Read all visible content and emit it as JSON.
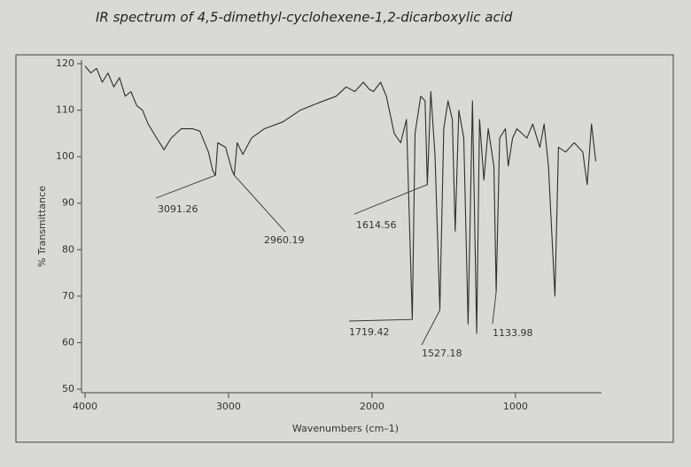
{
  "chart_data": {
    "type": "line",
    "title": "IR spectrum of 4,5-dimethyl-cyclohexene-1,2-dicarboxylic acid",
    "x_label": "Wavenumbers (cm–1)",
    "y_label": "% Transmittance",
    "xlim": [
      4000,
      400
    ],
    "ylim": [
      50,
      120
    ],
    "xticks": [
      4000,
      3000,
      2000,
      1000
    ],
    "yticks": [
      50,
      60,
      70,
      80,
      90,
      100,
      110,
      120
    ],
    "color": "#2e2e2e",
    "x": [
      4000,
      3960,
      3920,
      3880,
      3840,
      3800,
      3760,
      3720,
      3680,
      3640,
      3600,
      3560,
      3520,
      3480,
      3450,
      3400,
      3330,
      3250,
      3200,
      3140,
      3110,
      3091,
      3075,
      3020,
      2975,
      2960,
      2940,
      2900,
      2840,
      2750,
      2620,
      2500,
      2380,
      2250,
      2180,
      2120,
      2060,
      2020,
      1990,
      1940,
      1900,
      1845,
      1800,
      1760,
      1719,
      1700,
      1660,
      1630,
      1614,
      1590,
      1560,
      1527,
      1500,
      1470,
      1440,
      1420,
      1395,
      1360,
      1330,
      1300,
      1270,
      1250,
      1220,
      1190,
      1150,
      1134,
      1110,
      1070,
      1050,
      1020,
      990,
      920,
      880,
      830,
      800,
      770,
      725,
      700,
      650,
      590,
      530,
      500,
      470,
      440
    ],
    "values": [
      119.5,
      118,
      119,
      116,
      118,
      115,
      117,
      113,
      114,
      111,
      110,
      107,
      105,
      103,
      101.5,
      104,
      106,
      106,
      105.5,
      101,
      97,
      96,
      103,
      102,
      97,
      96,
      103,
      100.5,
      104,
      106,
      107.5,
      110,
      111.5,
      113,
      115,
      114,
      116,
      114.5,
      114,
      116,
      113,
      105,
      103,
      108,
      65,
      105,
      113,
      112,
      94,
      114,
      100,
      67,
      106,
      112,
      108,
      84,
      110,
      104,
      64,
      112,
      62,
      108,
      95,
      106,
      98,
      71,
      104,
      106,
      98,
      104,
      106,
      104,
      107,
      102,
      107,
      98,
      70,
      102,
      101,
      103,
      101,
      94,
      107,
      99
    ],
    "annotations": [
      {
        "text": "3091.26",
        "x": 3091,
        "y": 96
      },
      {
        "text": "2960.19",
        "x": 2960,
        "y": 96
      },
      {
        "text": "1614.56",
        "x": 1614,
        "y": 94
      },
      {
        "text": "1719.42",
        "x": 1719,
        "y": 65
      },
      {
        "text": "1527.18",
        "x": 1527,
        "y": 67
      },
      {
        "text": "1133.98",
        "x": 1134,
        "y": 71
      }
    ]
  }
}
